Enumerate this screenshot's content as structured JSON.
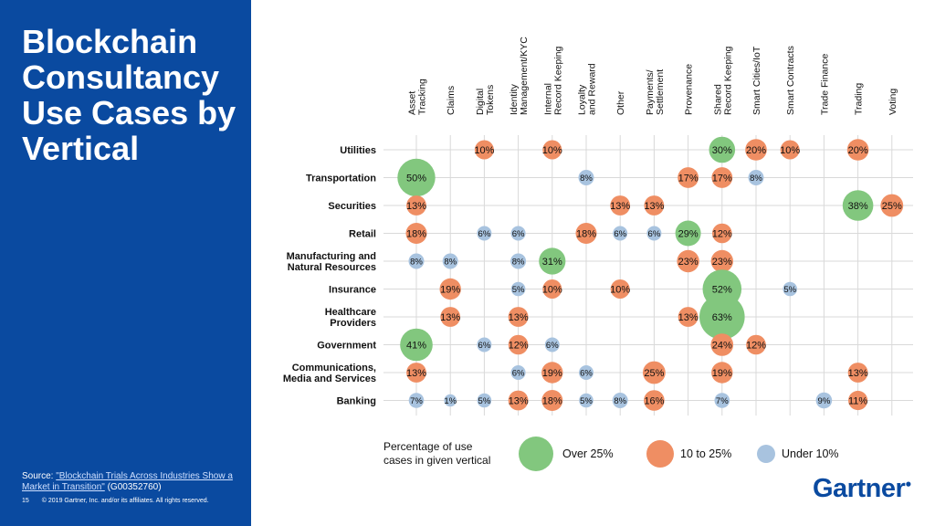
{
  "slide": {
    "title": "Blockchain Consultancy Use Cases by Vertical",
    "source_prefix": "Source: ",
    "source_link": "\"Blockchain Trials Across Industries Show a Market in Transition\"",
    "source_id": " (G00352760)",
    "page_number": "15",
    "copyright": "© 2019 Gartner, Inc. and/or its affiliates. All rights reserved.",
    "logo": "Gartner"
  },
  "colors": {
    "panel": "#0a4aa0",
    "over": "#82c77e",
    "mid": "#ef8e63",
    "under": "#a8c3df",
    "grid": "#d9d9d9"
  },
  "chart_data": {
    "type": "bubble",
    "columns": [
      [
        "Asset",
        "Tracking"
      ],
      [
        "Claims"
      ],
      [
        "Digital",
        "Tokens"
      ],
      [
        "Identity",
        "Management/KYC"
      ],
      [
        "Internal",
        "Record Keeping"
      ],
      [
        "Loyalty",
        "and Reward"
      ],
      [
        "Other"
      ],
      [
        "Payments/",
        "Settlement"
      ],
      [
        "Provenance"
      ],
      [
        "Shared",
        "Record Keeping"
      ],
      [
        "Smart Cities/IoT"
      ],
      [
        "Smart Contracts"
      ],
      [
        "Trade Finance"
      ],
      [
        "Trading"
      ],
      [
        "Voting"
      ]
    ],
    "rows": [
      [
        "Utilities"
      ],
      [
        "Transportation"
      ],
      [
        "Securities"
      ],
      [
        "Retail"
      ],
      [
        "Manufacturing and",
        "Natural Resources"
      ],
      [
        "Insurance"
      ],
      [
        "Healthcare",
        "Providers"
      ],
      [
        "Government"
      ],
      [
        "Communications,",
        "Media and Services"
      ],
      [
        "Banking"
      ]
    ],
    "values": [
      [
        null,
        null,
        10,
        null,
        10,
        null,
        null,
        null,
        null,
        30,
        20,
        10,
        null,
        20,
        null
      ],
      [
        50,
        null,
        null,
        null,
        null,
        8,
        null,
        null,
        17,
        17,
        8,
        null,
        null,
        null,
        null
      ],
      [
        13,
        null,
        null,
        null,
        null,
        null,
        13,
        13,
        null,
        null,
        null,
        null,
        null,
        38,
        25
      ],
      [
        18,
        null,
        6,
        6,
        null,
        18,
        6,
        6,
        29,
        12,
        null,
        null,
        null,
        null,
        null
      ],
      [
        8,
        8,
        null,
        8,
        31,
        null,
        null,
        null,
        23,
        23,
        null,
        null,
        null,
        null,
        null
      ],
      [
        null,
        19,
        null,
        5,
        10,
        null,
        10,
        null,
        null,
        52,
        null,
        5,
        null,
        null,
        null
      ],
      [
        null,
        13,
        null,
        13,
        null,
        null,
        null,
        null,
        13,
        63,
        null,
        null,
        null,
        null,
        null
      ],
      [
        41,
        null,
        6,
        12,
        6,
        null,
        null,
        null,
        null,
        24,
        12,
        null,
        null,
        null,
        null
      ],
      [
        13,
        null,
        null,
        6,
        19,
        6,
        null,
        25,
        null,
        19,
        null,
        null,
        null,
        13,
        null
      ],
      [
        7,
        1,
        5,
        13,
        18,
        5,
        8,
        16,
        null,
        7,
        null,
        null,
        9,
        11,
        null
      ]
    ],
    "value_suffix": "%",
    "legend": {
      "title": [
        "Percentage of use",
        "cases in given vertical"
      ],
      "items": [
        {
          "label": "Over 25%",
          "color": "#82c77e"
        },
        {
          "label": "10 to 25%",
          "color": "#ef8e63"
        },
        {
          "label": "Under 10%",
          "color": "#a8c3df"
        }
      ]
    }
  }
}
